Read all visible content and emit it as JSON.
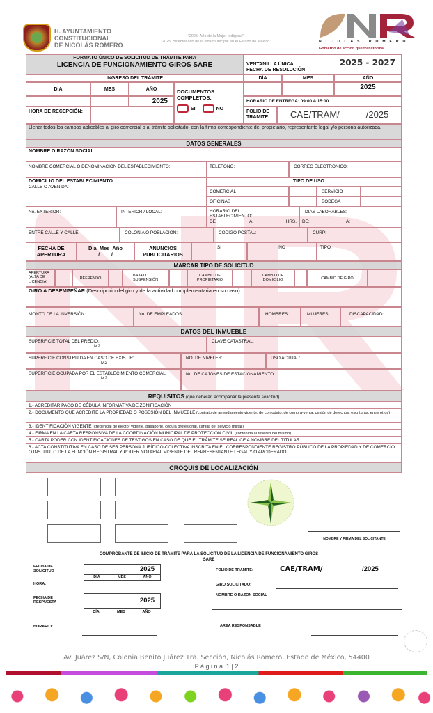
{
  "header": {
    "org_line1": "H. AYUNTAMIENTO",
    "org_line2": "CONSTITUCIONAL",
    "org_line3": "DE NICOLÁS ROMERO",
    "motto1": "\"2025, Año de la Mujer Indígena\"",
    "motto2": "\"2025. Bicentenario de la vida municipal en el Estado de México\"",
    "logo_text": "NR",
    "logo_sub": "NICOLÁS ROMERO",
    "logo_slogan": "Gobierno de acción que transforma",
    "period": "2025 - 2027"
  },
  "form": {
    "title1": "FORMATO ÚNICO DE SOLICITUD DE TRÁMITE PARA",
    "title2": "LICENCIA DE FUNCIONAMIENTO GIROS SARE",
    "ventanilla": "VENTANILLA ÚNICA",
    "fecha_resolucion": "FECHA DE RESOLUCIÓN",
    "ingreso": "INGRESO DEL TRÁMITE",
    "dia": "DÍA",
    "mes": "MES",
    "anio": "AÑO",
    "year": "2025",
    "docs": "DOCUMENTOS COMPLETOS:",
    "si": "SI",
    "no": "NO",
    "horario_entrega": "HORARIO DE ENTREGA: 09:00 A 15:00",
    "hora_recepcion": "HORA DE RECEPCIÓN:",
    "folio": "FOLIO DE TRAMITE:",
    "folio_value": "CAE/TRAM/",
    "folio_year": "/2025",
    "instructions": "Llenar todos los campos aplicables al giro comercial o al trámite solicitado, con la firma correspondiente del propietario, representante legal y/o persona autorizada."
  },
  "datos_generales": {
    "title": "DATOS GENERALES",
    "nombre": "NOMBRE O RAZÓN SOCIAL:",
    "nombre_comercial": "NOMBRE COMERCIAL O DENOMINACIÓN DEL ESTABLECIMIENTO:",
    "telefono": "TELÉFONO:",
    "correo": "CORREO ELECTRÓNICO:",
    "domicilio": "DOMICILIO DEL ESTABLECIMIENTO:",
    "calle": "CALLE O AVENIDA:",
    "tipo_uso": "TIPO DE USO",
    "comercial": "COMERCIAL",
    "servicio": "SERVICIO",
    "oficinas": "OFICINAS",
    "bodega": "BODEGA",
    "no_ext": "No. EXTERIOR:",
    "interior": "INTERIOR / LOCAL:",
    "horario": "HORARIO DEL ESTABLECIMIENTO:",
    "de": "DE:",
    "a": "A:",
    "hrs": "HRS.",
    "dias": "DIAS LABORABLES:",
    "entre": "ENTRE CALLE Y CALLE:",
    "colonia": "COLONIA O POBLACIÓN:",
    "cp": "CÓDIGO POSTAL:",
    "curp": "CURP:",
    "fecha_apertura": "FECHA DE APERTURA",
    "dma": "Día  Mes  Año",
    "slashes": "/        /",
    "anuncios": "ANUNCIOS PUBLICITARIOS",
    "si": "SI",
    "no": "NO",
    "tipo": "TIPO:"
  },
  "tipo_solicitud": {
    "title": "MARCAR TIPO DE SOLICITUD",
    "options": [
      "APERTURA (ALTA DE LICENCIA)",
      "REFRENDO",
      "BAJA O SUSPENSIÓN",
      "CAMBIO DE PROPIETARIO",
      "CAMBIO DE DOMICILIO",
      "CAMBIO DE GIRO"
    ]
  },
  "giro": {
    "label": "GIRO A DESEMPEÑAR",
    "desc": " (Descripción del giro y de la actividad complementaria en su caso)",
    "monto": "MONTO DE LA INVERSIÓN:",
    "empleados": "No. DE EMPLEADOS:",
    "hombres": "HOMBRES:",
    "mujeres": "MUJERES:",
    "discapacidad": "DISCAPACIDAD:"
  },
  "inmueble": {
    "title": "DATOS DEL INMUEBLE",
    "sup_total": "SUPERFICIE TOTAL DEL PREDIO:",
    "m2": "M2",
    "clave": "CLAVE CATASTRAL:",
    "sup_construida": "SUPERFICIE CONSTRUIDA EN CASO DE EXISTIR:",
    "niveles": "NO. DE NIVELES:",
    "uso": "USO ACTUAL:",
    "sup_ocupada": "SUPERFICIE OCUPADA POR EL ESTABLECIMIENTO COMERCIAL:",
    "cajones": "No. DE CAJONES DE ESTACIONAMIENTO:"
  },
  "requisitos": {
    "title": "REQUISITOS",
    "subtitle": " (que deberán acompañar la presente solicitud)",
    "items": [
      {
        "main": "1.- ACREDITAR PAGO DE CÉDULA INFORMATIVA DE ZONIFICACIÓN",
        "note": ""
      },
      {
        "main": "2.- DOCUMENTO QUE ACREDITE LA PROPIEDAD O POSESIÓN DEL INMUEBLE",
        "note": " (contrato de arrendamiento vigente, de comodato, de compra-venta, cesión de derechos, escrituras, entre otros)"
      },
      {
        "main": "3.- IDENTIFICACIÓN VIGENTE",
        "note": " (credencial de elector vigente, pasaporte, cédula profesional, cartilla del servicio militar)"
      },
      {
        "main": "4.- FIRMA EN LA CARTA RESPONSIVA DE LA COORDINACIÓN MUNICIPAL DE PROTECCIÓN CIVIL",
        "note": " (contenida al reverso del mismo)"
      },
      {
        "main": "5.- CARTA PODER CON IDENTIFICACIONES DE TESTIGOS EN CASO DE QUE EL TRÁMITE SE REALICE A NOMBRE DEL TITULAR",
        "note": ""
      },
      {
        "main": "6.- ACTA CONSTITUTIVA EN CASO DE SER PERSONA JURÍDICO-COLECTIVA INSCRITA EN EL CORRESPONDIENTE REGISTRO PÚBLICO DE LA PROPIEDAD Y DE COMERCIO O INSTITUTO DE LA FUNCIÓN REGISTRAL Y PODER NOTARIAL VIGENTE DEL REPRESENTANTE LEGAL Y/O APODERADO.",
        "note": ""
      }
    ]
  },
  "croquis": {
    "title": "CROQUIS DE LOCALIZACIÓN",
    "firma": "NOMBRE Y FIRMA DEL SOLICITANTE"
  },
  "comprobante": {
    "title": "COMPROBANTE DE INICIO DE TRÁMITE PARA LA SOLICITUD DE LA LICENCIA DE FUNCIONAMIENTO GIROS SARE",
    "fecha_solicitud": "FECHA DE SOLICITUD",
    "hora": "HORA:",
    "fecha_respuesta": "FECHA DE RESPUESTA",
    "horario": "HORARIO:",
    "dia": "DÍA",
    "mes": "MES",
    "anio": "AÑO",
    "year": "2025",
    "folio": "FOLIO DE TRAMITE:",
    "folio_value": "CAE/TRAM/",
    "folio_year": "/2025",
    "giro": "GIRO SOLICITADO:",
    "nombre": "NOMBRE O RAZÓN SOCIAL",
    "area": "AREA RESPONSABLE"
  },
  "footer": {
    "address": "Av. Juárez S/N, Colonia Benito Juárez 1ra. Sección, Nicolás Romero, Estado de México, 54400",
    "page": "P á g i n a  1 | 2"
  },
  "colors": {
    "border": "#c9868f",
    "accent": "#a3243a",
    "header_gray": "#d2d2d2"
  }
}
